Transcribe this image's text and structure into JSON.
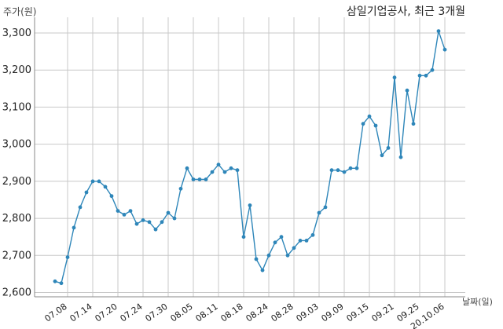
{
  "chart_data": {
    "type": "line",
    "title": "삼일기업공사, 최근 3개월",
    "ylabel": "주가(원)",
    "xlabel": "날짜(일)",
    "ylim": [
      2600,
      3350
    ],
    "yticks": [
      2600,
      2700,
      2800,
      2900,
      3000,
      3100,
      3200,
      3300
    ],
    "ytick_labels": [
      "2,600",
      "2,700",
      "2,800",
      "2,900",
      "3,000",
      "3,100",
      "3,200",
      "3,300"
    ],
    "xtick_labels": [
      "07.08",
      "07.14",
      "07.20",
      "07.24",
      "07.30",
      "08.05",
      "08.11",
      "08.18",
      "08.24",
      "08.28",
      "09.03",
      "09.09",
      "09.15",
      "09.21",
      "09.25",
      "20.10.06"
    ],
    "grid": true,
    "color": "#2e86b9",
    "series": [
      {
        "values": [
          2630,
          2625,
          2695,
          2775,
          2830,
          2870,
          2900,
          2900,
          2885,
          2860,
          2820,
          2810,
          2820,
          2785,
          2795,
          2790,
          2770,
          2790,
          2815,
          2800,
          2880,
          2935,
          2905,
          2905,
          2905,
          2925,
          2945,
          2925,
          2935,
          2930,
          2750,
          2835,
          2690,
          2660,
          2700,
          2735,
          2750,
          2700,
          2720,
          2740,
          2740,
          2755,
          2815,
          2830,
          2930,
          2930,
          2925,
          2935,
          2935,
          3055,
          3075,
          3050,
          2970,
          2990,
          3180,
          2965,
          3145,
          3055,
          3185,
          3185,
          3200,
          3305,
          3255
        ]
      }
    ]
  }
}
